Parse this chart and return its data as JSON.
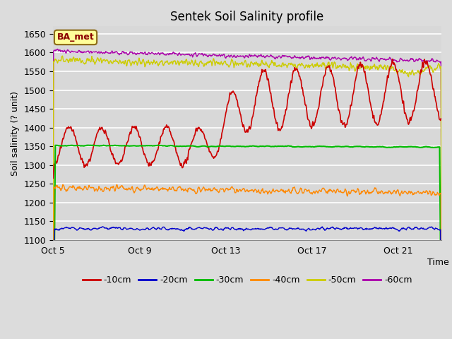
{
  "title": "Sentek Soil Salinity profile",
  "ylabel": "Soil salinity (? unit)",
  "xlabel": "Time",
  "annotation": "BA_met",
  "ylim": [
    1100,
    1670
  ],
  "yticks": [
    1100,
    1150,
    1200,
    1250,
    1300,
    1350,
    1400,
    1450,
    1500,
    1550,
    1600,
    1650
  ],
  "x_tick_labels": [
    "Oct 5",
    "Oct 9",
    "Oct 13",
    "Oct 17",
    "Oct 21"
  ],
  "bg_color": "#dcdcdc",
  "legend_labels": [
    "-10cm",
    "-20cm",
    "-30cm",
    "-40cm",
    "-50cm",
    "-60cm"
  ],
  "line_colors": [
    "#cc0000",
    "#0000cc",
    "#00bb00",
    "#ff8800",
    "#cccc00",
    "#aa00aa"
  ],
  "n_days": 18,
  "pts_per_day": 48,
  "seed": 42
}
